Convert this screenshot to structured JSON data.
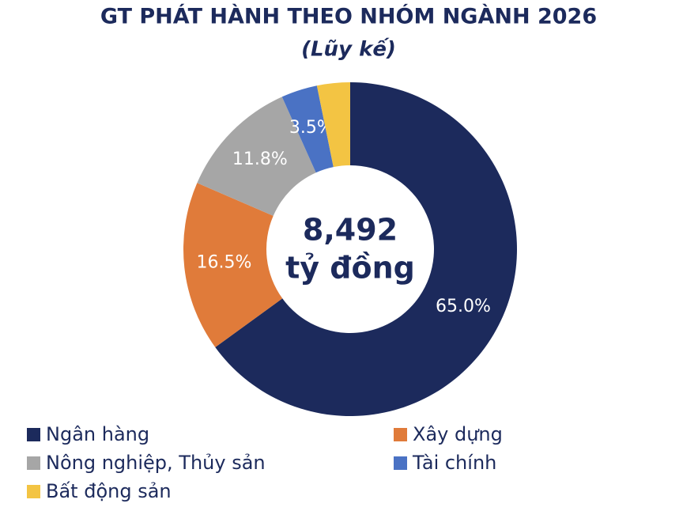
{
  "chart_data": {
    "type": "pie",
    "donut": true,
    "title": "GT PHÁT HÀNH THEO NHÓM NGÀNH 2026",
    "subtitle": "(Lũy kế)",
    "center_text": [
      "8,492",
      "tỷ đồng"
    ],
    "categories": [
      "Ngân hàng",
      "Xây dựng",
      "Nông nghiệp, Thủy sản",
      "Tài chính",
      "Bất động sản"
    ],
    "values": [
      65.0,
      16.5,
      11.8,
      3.5,
      3.2
    ],
    "value_labels": [
      "65.0%",
      "16.5%",
      "11.8%",
      "3.5%",
      null
    ],
    "colors": [
      "#1c2a5c",
      "#e07b3a",
      "#a6a6a6",
      "#4a72c4",
      "#f3c443"
    ],
    "legend": "bottom"
  }
}
